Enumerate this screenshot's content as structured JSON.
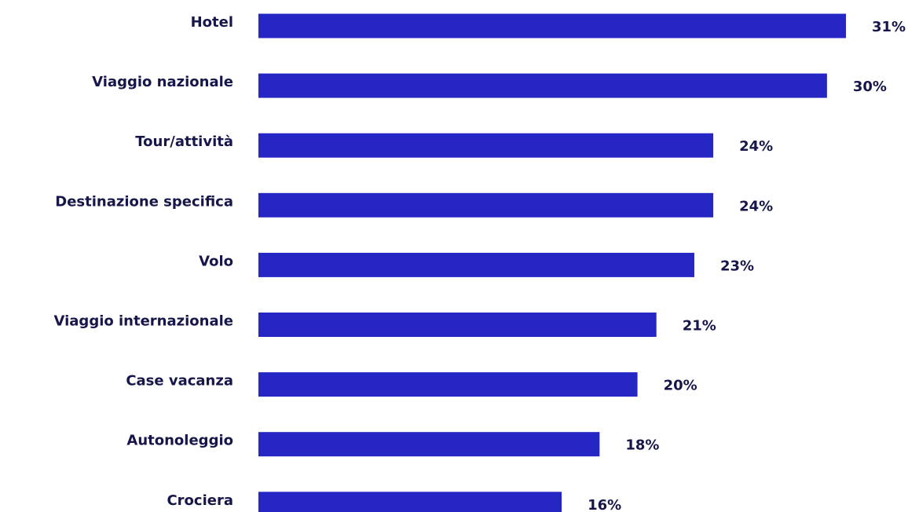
{
  "chart_data": {
    "type": "bar",
    "orientation": "horizontal",
    "categories": [
      "Hotel",
      "Viaggio nazionale",
      "Tour/attività",
      "Destinazione specifica",
      "Volo",
      "Viaggio internazionale",
      "Case vacanza",
      "Autonoleggio",
      "Crociera"
    ],
    "values": [
      31,
      30,
      24,
      24,
      23,
      21,
      20,
      18,
      16
    ],
    "value_labels": [
      "31%",
      "30%",
      "24%",
      "24%",
      "23%",
      "21%",
      "20%",
      "18%",
      "16%"
    ],
    "color": "#2626c4"
  }
}
